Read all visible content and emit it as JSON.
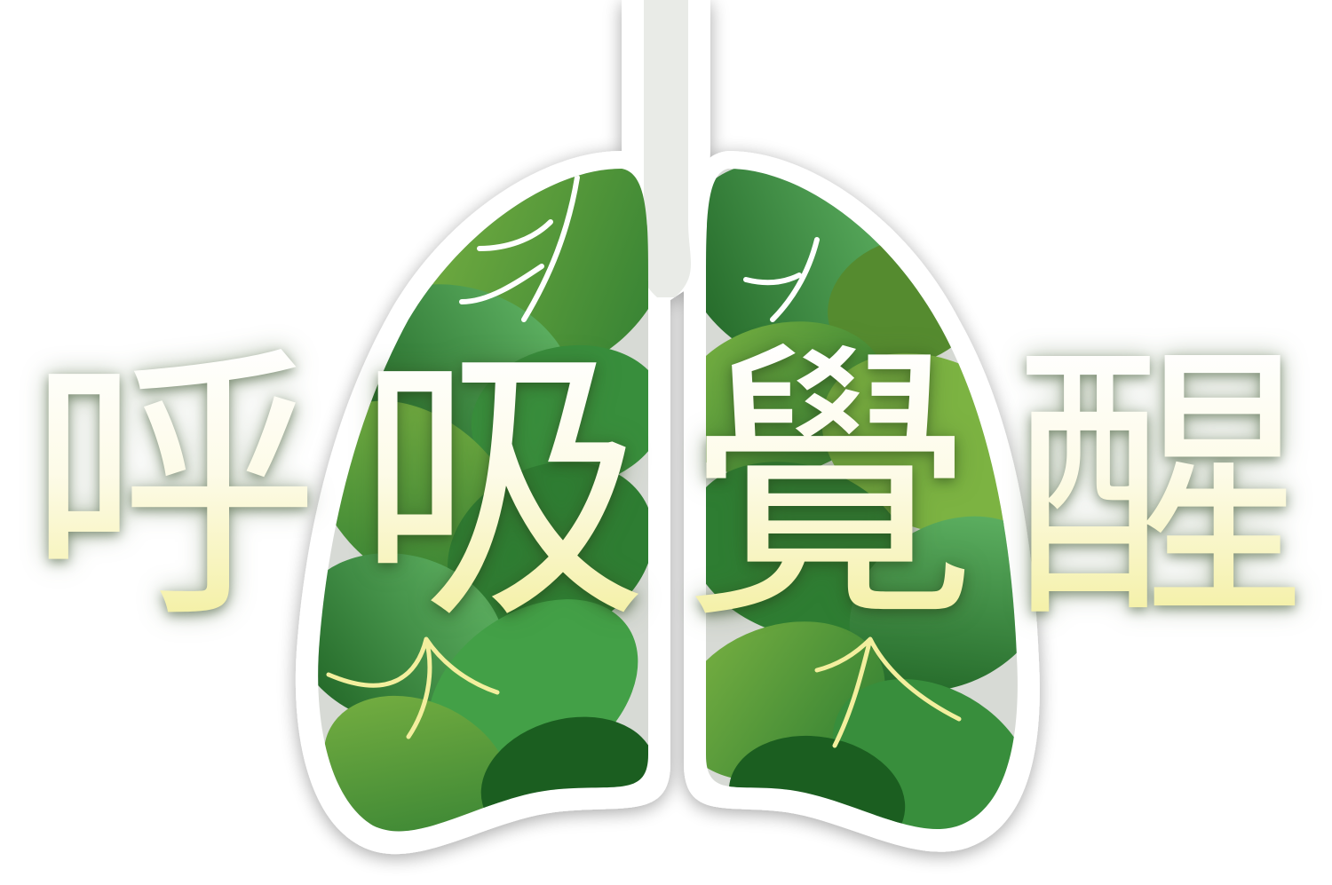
{
  "title": {
    "text": "呼吸覺醒"
  },
  "illustration": {
    "subject": "lungs-with-leaves",
    "icon": "lungs-icon",
    "colors": {
      "leaf_dark": "#2e7d32",
      "leaf_mid": "#43a047",
      "leaf_light": "#7cb342",
      "outline": "#ffffff",
      "shadow": "#c8cbc6",
      "roots": "#f3ef9e",
      "title_gradient_top": "#ffffff",
      "title_gradient_bottom": "#f3ef9e"
    }
  }
}
